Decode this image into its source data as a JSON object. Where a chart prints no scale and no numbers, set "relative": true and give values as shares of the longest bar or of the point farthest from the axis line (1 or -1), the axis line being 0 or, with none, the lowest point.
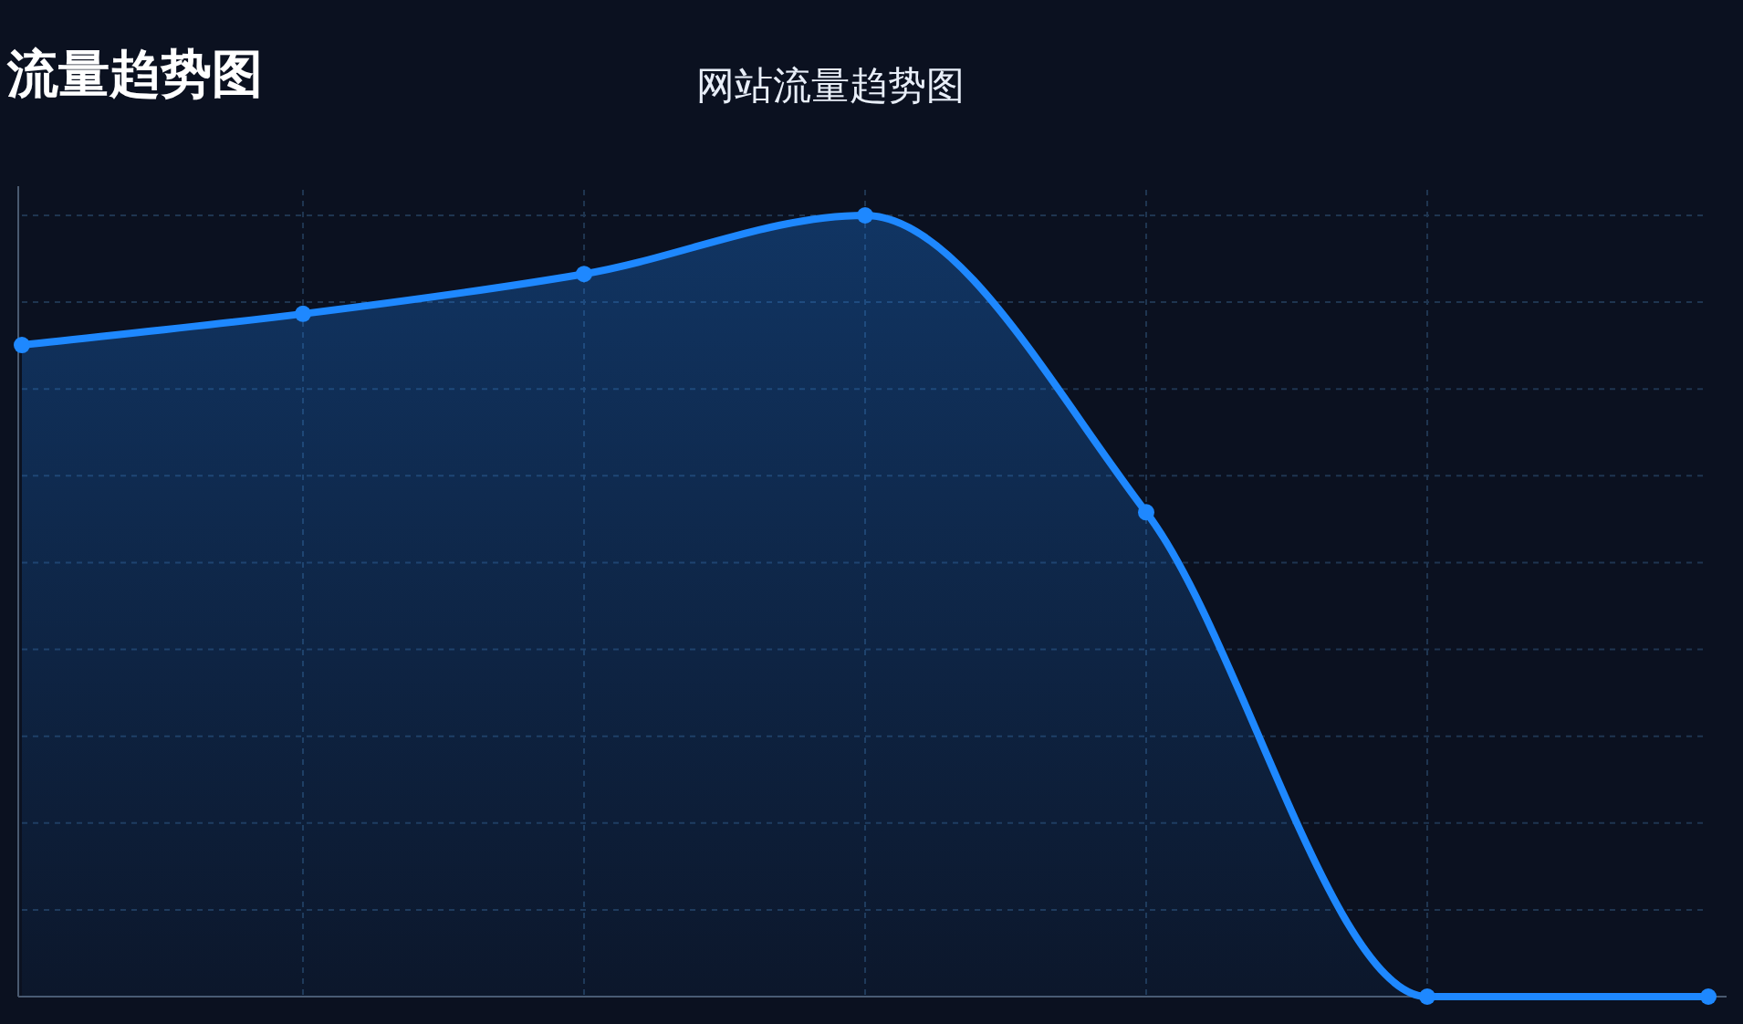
{
  "chart_data": {
    "type": "area",
    "title": "网站流量趋势图",
    "annotations": [
      "流量趋势图"
    ],
    "relative": true,
    "categories": [
      null,
      null,
      null,
      null,
      null,
      null,
      null
    ],
    "series": [
      {
        "color": "#1e88ff",
        "values": [
          0.834,
          0.874,
          0.925,
          1,
          0.62,
          0,
          0
        ]
      }
    ],
    "grid": true,
    "marker": "circle"
  }
}
